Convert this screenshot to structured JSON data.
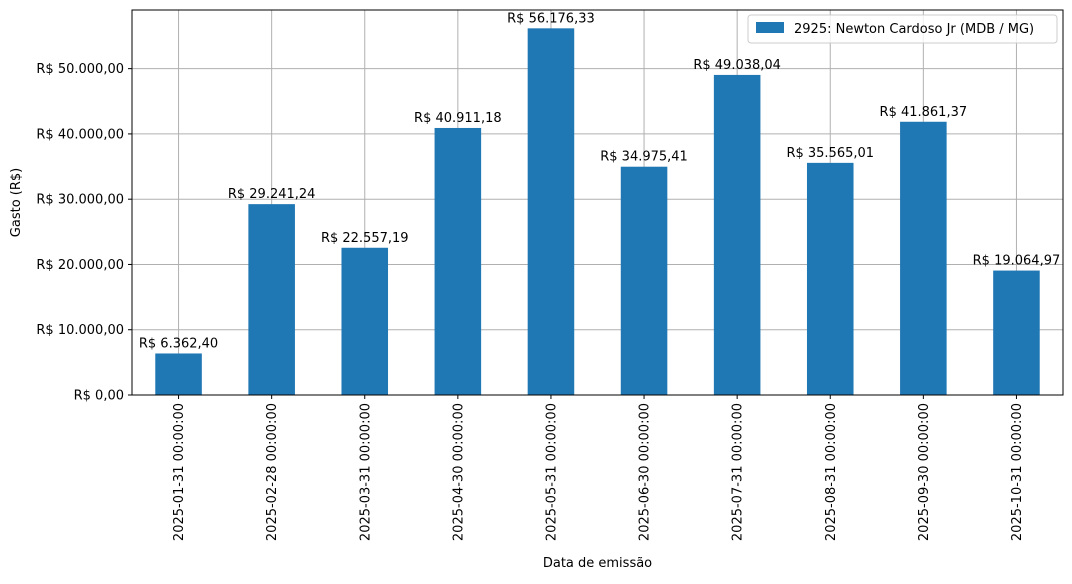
{
  "chart_data": {
    "type": "bar",
    "xlabel": "Data de emissão",
    "ylabel": "Gasto (R$)",
    "categories": [
      "2025-01-31 00:00:00",
      "2025-02-28 00:00:00",
      "2025-03-31 00:00:00",
      "2025-04-30 00:00:00",
      "2025-05-31 00:00:00",
      "2025-06-30 00:00:00",
      "2025-07-31 00:00:00",
      "2025-08-31 00:00:00",
      "2025-09-30 00:00:00",
      "2025-10-31 00:00:00"
    ],
    "series": [
      {
        "name": "2925: Newton Cardoso Jr (MDB / MG)",
        "color": "#1f77b4",
        "values": [
          6362.4,
          29241.24,
          22557.19,
          40911.18,
          56176.33,
          34975.41,
          49038.04,
          35565.01,
          41861.37,
          19064.97
        ],
        "value_labels": [
          "R$ 6.362,40",
          "R$ 29.241,24",
          "R$ 22.557,19",
          "R$ 40.911,18",
          "R$ 56.176,33",
          "R$ 34.975,41",
          "R$ 49.038,04",
          "R$ 35.565,01",
          "R$ 41.861,37",
          "R$ 19.064,97"
        ]
      }
    ],
    "yticks": [
      0,
      10000,
      20000,
      30000,
      40000,
      50000
    ],
    "ytick_labels": [
      "R$ 0,00",
      "R$ 10.000,00",
      "R$ 20.000,00",
      "R$ 30.000,00",
      "R$ 40.000,00",
      "R$ 50.000,00"
    ],
    "ylim": [
      0,
      58985
    ],
    "grid": true,
    "grid_color": "#b0b0b0",
    "legend_position": "top-right"
  }
}
